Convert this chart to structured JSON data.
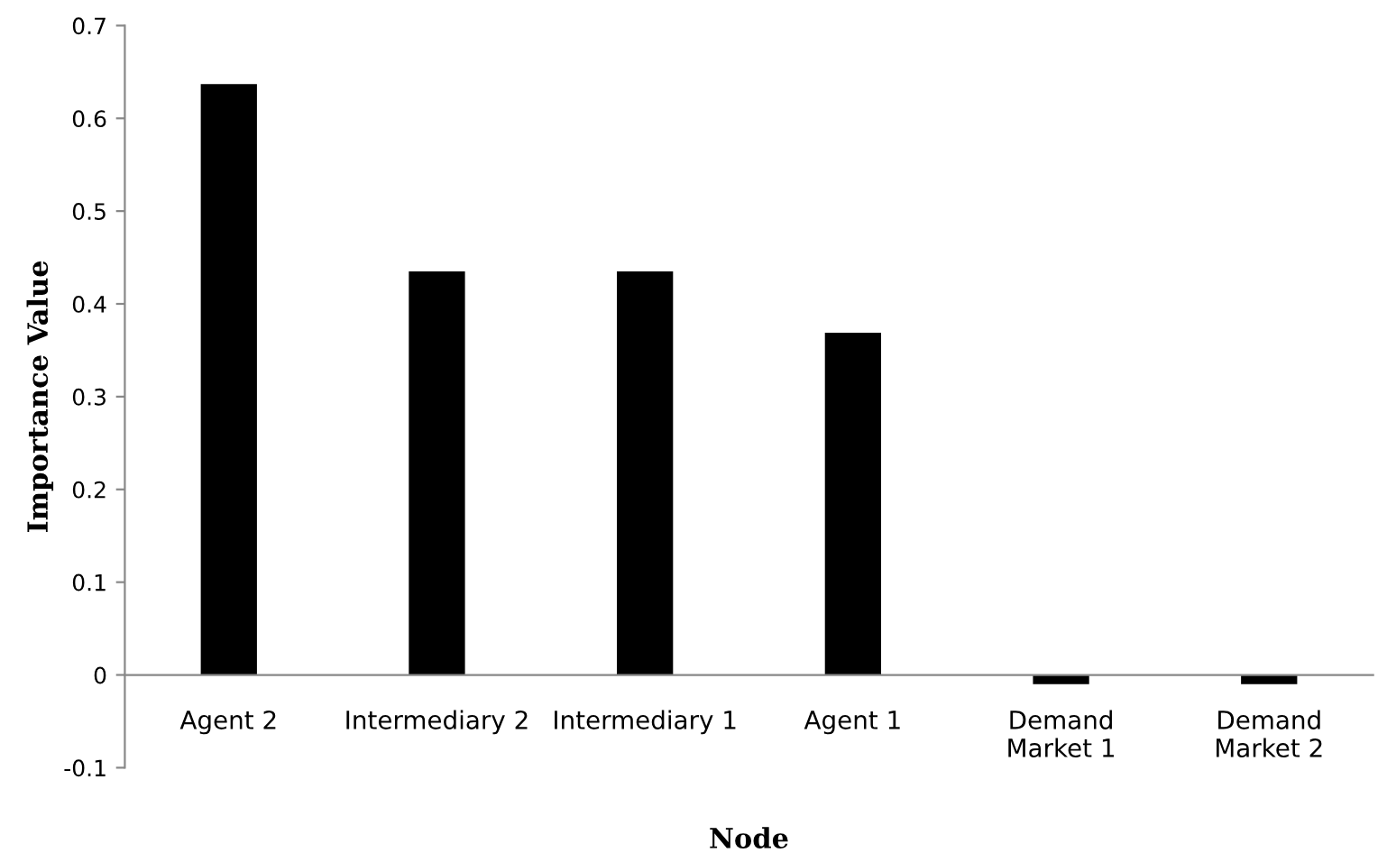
{
  "chart_data": {
    "type": "bar",
    "xlabel": "Node",
    "ylabel": "Importance Value",
    "categories": [
      "Agent 2",
      "Intermediary 2",
      "Intermediary 1",
      "Agent 1",
      "Demand\nMarket 1",
      "Demand\nMarket 2"
    ],
    "values": [
      0.637,
      0.435,
      0.435,
      0.369,
      -0.01,
      -0.01
    ],
    "color": "#000000",
    "ylim": [
      -0.1,
      0.7
    ],
    "yticks": [
      -0.1,
      0,
      0.1,
      0.2,
      0.3,
      0.4,
      0.5,
      0.6,
      0.7
    ],
    "grid": false
  }
}
